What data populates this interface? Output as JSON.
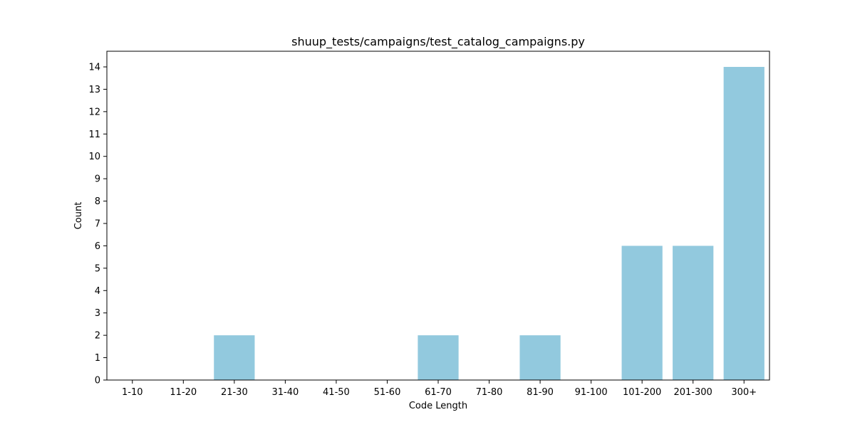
{
  "chart_data": {
    "type": "bar",
    "title": "shuup_tests/campaigns/test_catalog_campaigns.py",
    "xlabel": "Code Length",
    "ylabel": "Count",
    "categories": [
      "1-10",
      "11-20",
      "21-30",
      "31-40",
      "41-50",
      "51-60",
      "61-70",
      "71-80",
      "81-90",
      "91-100",
      "101-200",
      "201-300",
      "300+"
    ],
    "values": [
      0,
      0,
      2,
      0,
      0,
      0,
      2,
      0,
      2,
      0,
      6,
      6,
      14
    ],
    "yticks": [
      0,
      1,
      2,
      3,
      4,
      5,
      6,
      7,
      8,
      9,
      10,
      11,
      12,
      13,
      14
    ],
    "ylim": [
      0,
      14.7
    ],
    "bar_color": "#92c9de",
    "grid": false,
    "legend": false
  }
}
